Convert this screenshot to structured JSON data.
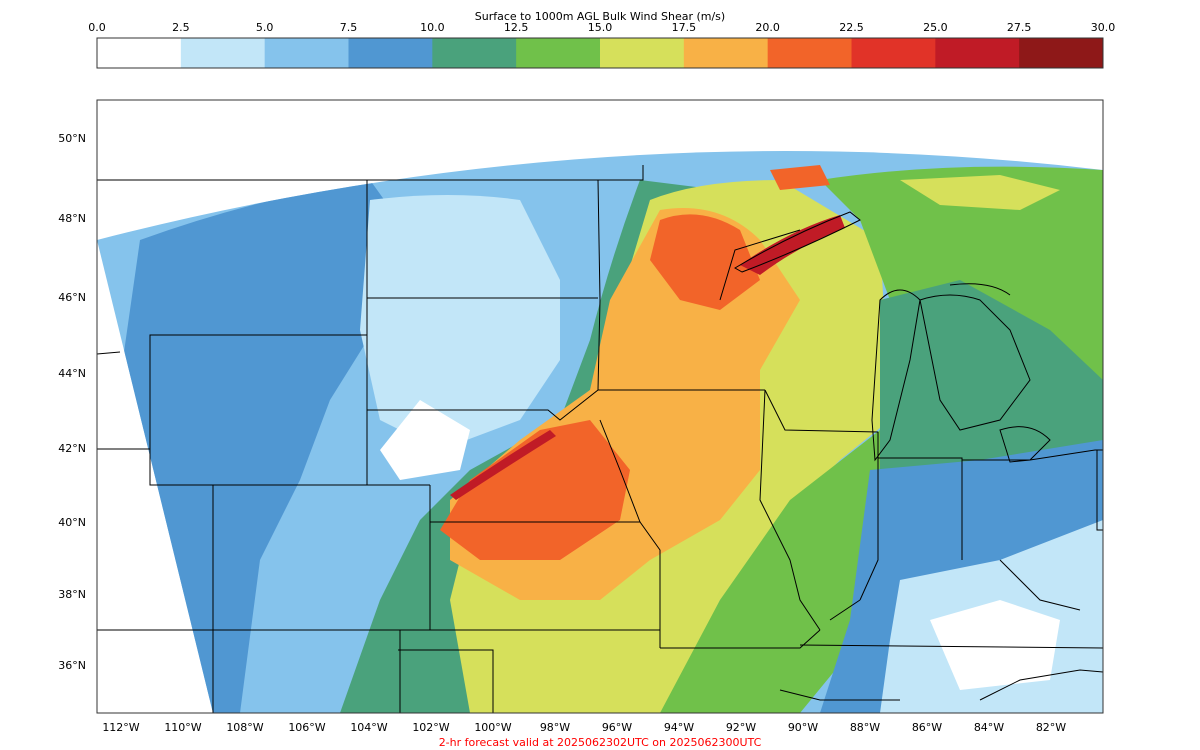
{
  "colorbar": {
    "title": "Surface to 1000m AGL Bulk Wind Shear (m/s)",
    "ticks": [
      "0.0",
      "2.5",
      "5.0",
      "7.5",
      "10.0",
      "12.5",
      "15.0",
      "17.5",
      "20.0",
      "22.5",
      "25.0",
      "27.5",
      "30.0"
    ],
    "colors": [
      "#ffffff",
      "#c2e6f8",
      "#85c3ec",
      "#5097d2",
      "#4aa27c",
      "#70c14a",
      "#d6e05b",
      "#f8b146",
      "#f26429",
      "#e13328",
      "#c01b26",
      "#8e1818"
    ]
  },
  "map": {
    "lat_labels": [
      "50°N",
      "48°N",
      "46°N",
      "44°N",
      "42°N",
      "40°N",
      "38°N",
      "36°N"
    ],
    "lon_labels": [
      "112°W",
      "110°W",
      "108°W",
      "106°W",
      "104°W",
      "102°W",
      "100°W",
      "98°W",
      "96°W",
      "94°W",
      "92°W",
      "90°W",
      "88°W",
      "86°W",
      "84°W",
      "82°W"
    ]
  },
  "footer": {
    "text": "2-hr forecast valid at 2025062302UTC on 2025062300UTC",
    "color": "#ff0000"
  }
}
